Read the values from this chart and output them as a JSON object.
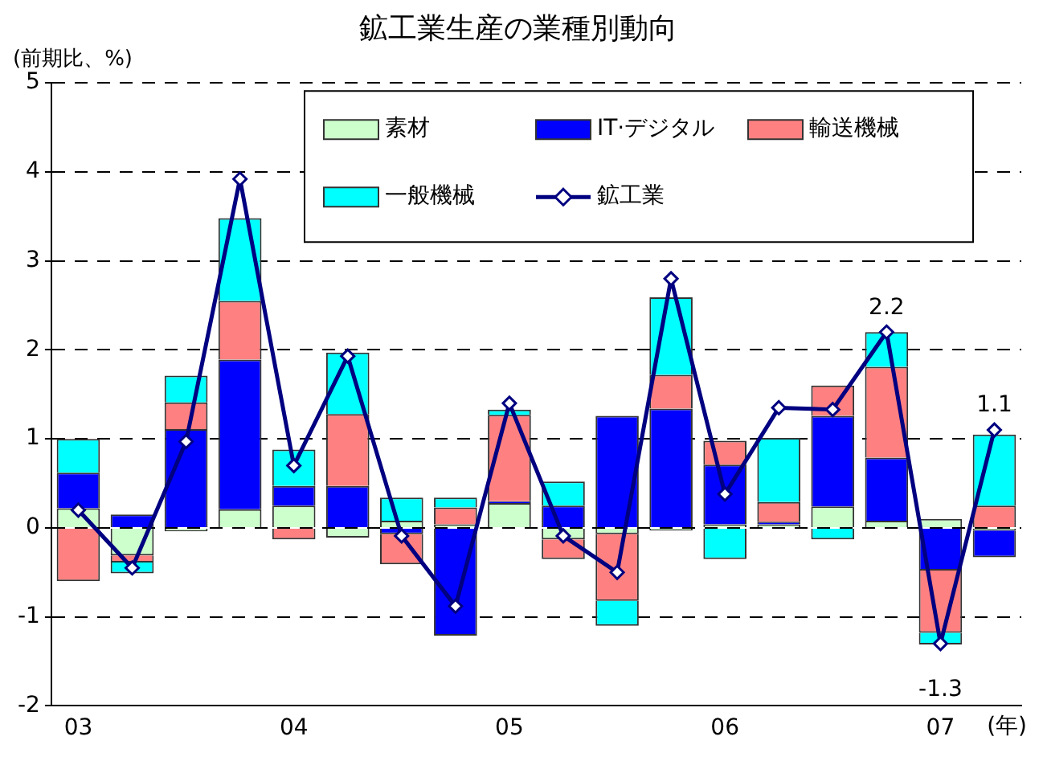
{
  "chart_data": {
    "type": "bar",
    "title": "鉱工業生産の業種別動向",
    "ylabel": "(前期比、%)",
    "xlabel": "(年)",
    "stacked": true,
    "categories": [
      "03",
      null,
      null,
      null,
      "04",
      null,
      null,
      null,
      "05",
      null,
      null,
      null,
      "06",
      null,
      null,
      null,
      "07",
      null
    ],
    "series": [
      {
        "name": "素材",
        "color": "#ccffcc",
        "values": [
          0.22,
          -0.31,
          -0.04,
          0.21,
          0.25,
          -0.11,
          0.08,
          0.04,
          0.28,
          -0.13,
          -0.07,
          -0.03,
          0.04,
          0.04,
          0.24,
          0.08,
          0.1,
          -0.03
        ]
      },
      {
        "name": "IT·デジタル",
        "color": "#0000ff",
        "values": [
          0.4,
          0.15,
          1.11,
          1.68,
          0.22,
          0.47,
          -0.07,
          -1.21,
          0.02,
          0.25,
          1.26,
          1.34,
          0.67,
          0.03,
          1.02,
          0.71,
          -0.48,
          -0.3
        ]
      },
      {
        "name": "輸送機械",
        "color": "#ff8080",
        "values": [
          -0.6,
          -0.08,
          0.3,
          0.66,
          -0.13,
          0.81,
          -0.34,
          0.19,
          0.97,
          -0.22,
          -0.75,
          0.38,
          0.27,
          0.22,
          0.34,
          1.02,
          -0.7,
          0.25
        ]
      },
      {
        "name": "一般機械",
        "color": "#00ffff",
        "values": [
          0.38,
          -0.12,
          0.3,
          0.93,
          0.41,
          0.69,
          0.26,
          0.11,
          0.06,
          0.27,
          -0.28,
          0.87,
          -0.35,
          0.72,
          -0.13,
          0.39,
          -0.13,
          0.8
        ]
      },
      {
        "name": "鉱工業",
        "type": "line",
        "color": "#000080",
        "values": [
          0.2,
          -0.45,
          0.97,
          3.92,
          0.7,
          1.93,
          -0.09,
          -0.88,
          1.4,
          -0.09,
          -0.5,
          2.8,
          0.38,
          1.35,
          1.33,
          2.2,
          -1.3,
          1.1
        ],
        "value_labels": [
          null,
          null,
          null,
          null,
          null,
          null,
          null,
          null,
          null,
          null,
          null,
          null,
          null,
          null,
          null,
          "2.2",
          "-1.3",
          "1.1"
        ]
      }
    ],
    "ylim": [
      -2,
      5
    ],
    "yticks": [
      -2,
      -1,
      0,
      1,
      2,
      3,
      4,
      5
    ],
    "grid": "y",
    "legend": "top right",
    "marker": "diamond",
    "line_style": "solid"
  }
}
